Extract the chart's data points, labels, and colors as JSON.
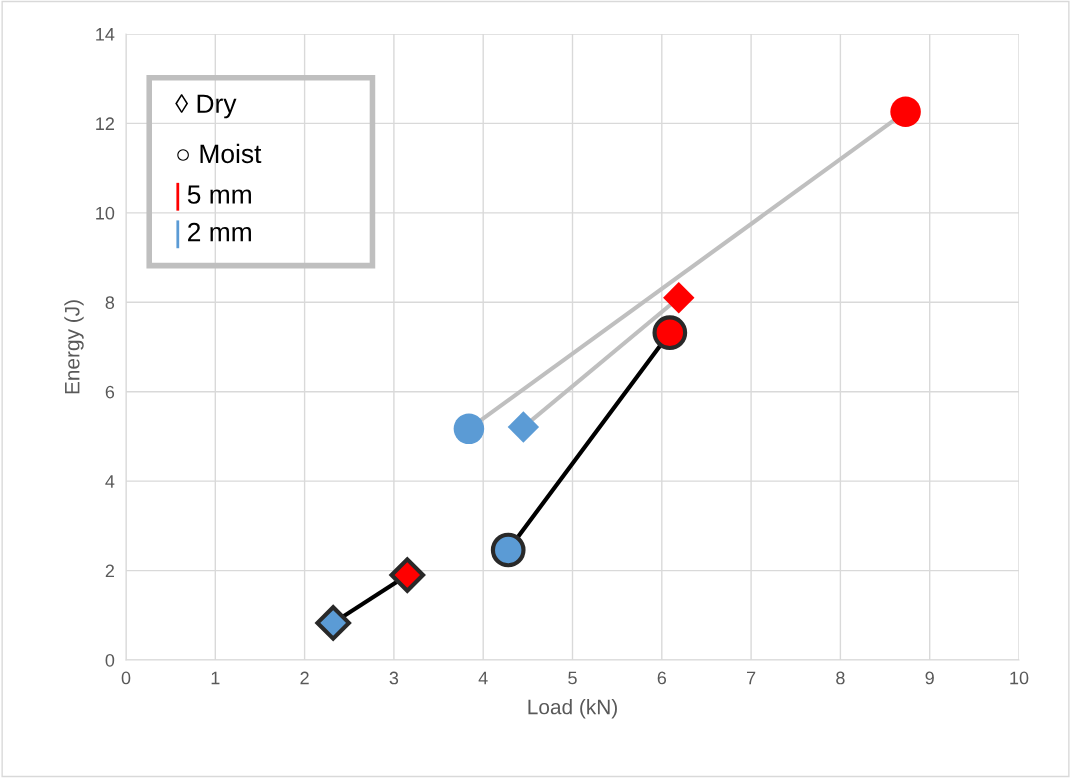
{
  "chart_data": {
    "type": "line",
    "xlabel": "Load (kN)",
    "ylabel": "Energy (J)",
    "xlim": [
      0,
      10
    ],
    "ylim": [
      0,
      14
    ],
    "xticks": [
      0,
      1,
      2,
      3,
      4,
      5,
      6,
      7,
      8,
      9,
      10
    ],
    "yticks": [
      0,
      2,
      4,
      6,
      8,
      10,
      12,
      14
    ],
    "grid": true,
    "series": [
      {
        "color": "#bfbfbf",
        "marker": "circle",
        "x": [
          3.84,
          8.73
        ],
        "values": [
          5.17,
          12.26
        ],
        "colors": [
          "#5b9bd5",
          "#ff0000"
        ]
      },
      {
        "color": "#bfbfbf",
        "marker": "diamond",
        "x": [
          4.45,
          6.19
        ],
        "values": [
          5.21,
          8.1
        ],
        "colors": [
          "#5b9bd5",
          "#ff0000"
        ]
      },
      {
        "color": "#000000",
        "marker": "circle",
        "x": [
          4.28,
          6.09
        ],
        "values": [
          2.46,
          7.32
        ],
        "colors": [
          "#5b9bd5",
          "#ff0000"
        ]
      },
      {
        "color": "#000000",
        "marker": "diamond",
        "x": [
          2.32,
          3.15
        ],
        "values": [
          0.83,
          1.9
        ],
        "colors": [
          "#5b9bd5",
          "#ff0000"
        ]
      }
    ],
    "annotations": [
      "◊ Dry",
      "○ Moist",
      "5 mm",
      "2 mm"
    ]
  }
}
